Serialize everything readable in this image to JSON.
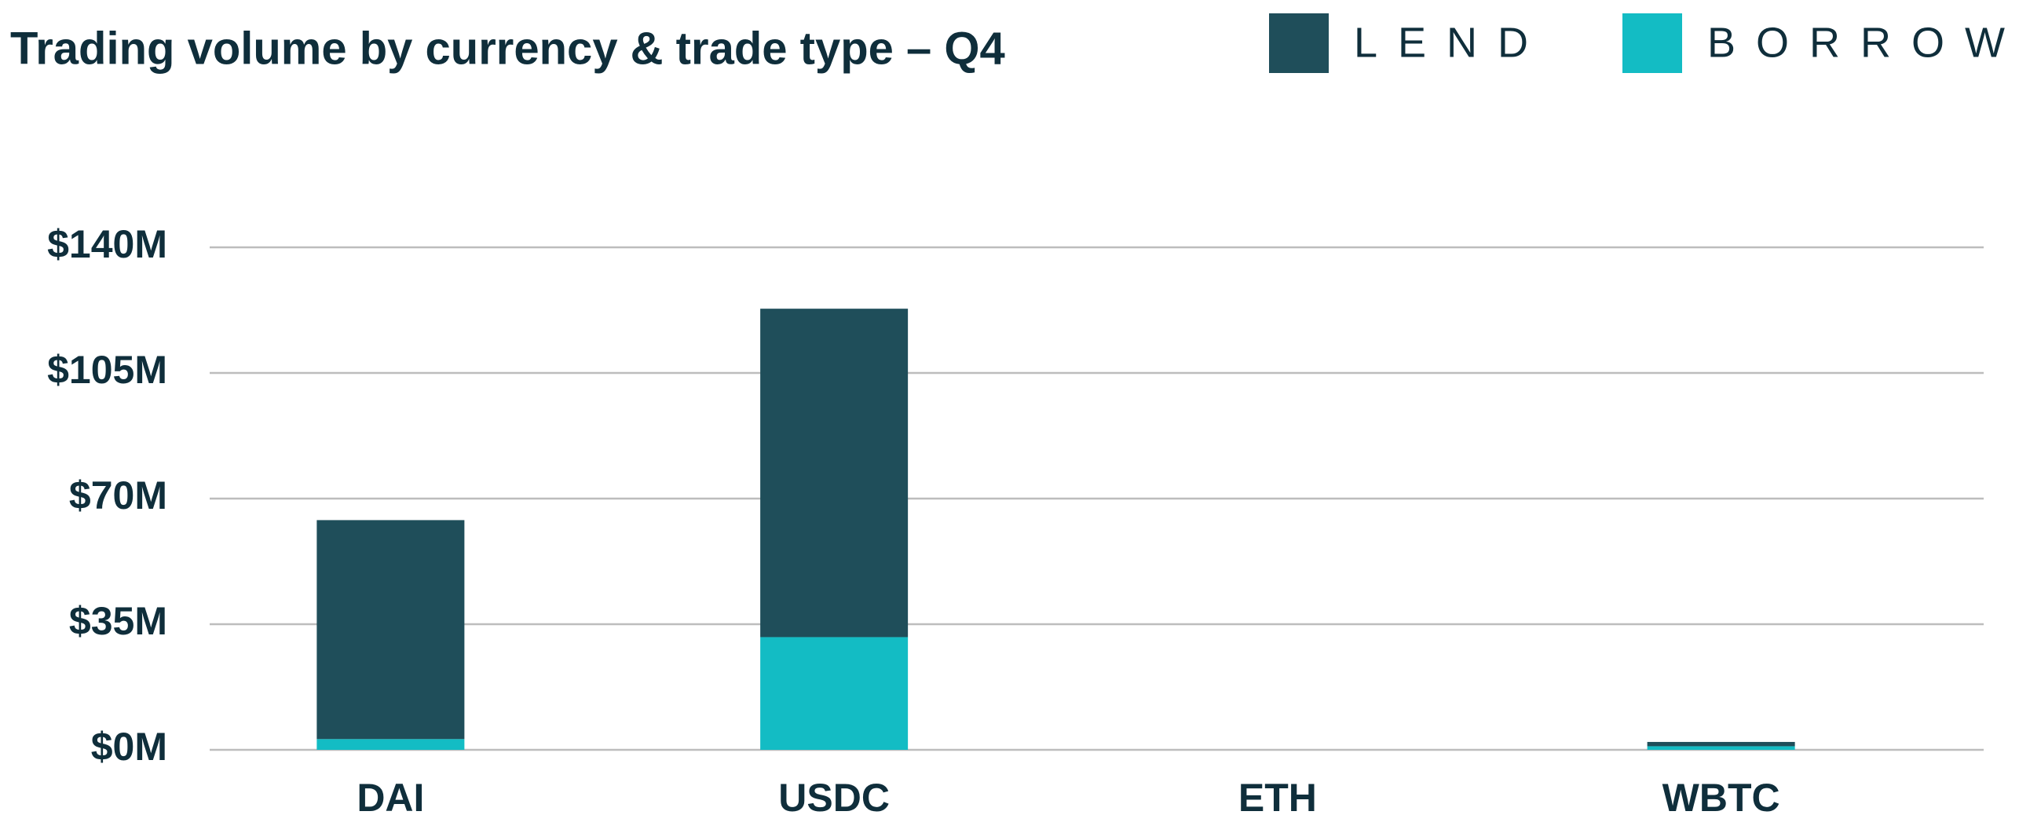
{
  "chart_data": {
    "type": "stacked_bar",
    "title": "Trading volume by currency & trade type – Q4",
    "categories": [
      "DAI",
      "USDC",
      "ETH",
      "WBTC"
    ],
    "series": [
      {
        "name": "LEND",
        "color": "#1f4e5a",
        "values": [
          61,
          91.5,
          0,
          1.2
        ]
      },
      {
        "name": "BORROW",
        "color": "#13bcc4",
        "values": [
          3,
          31.4,
          0,
          1
        ]
      }
    ],
    "ylim": [
      0,
      140
    ],
    "yticks": [
      {
        "value": 0,
        "label": "$0M"
      },
      {
        "value": 35,
        "label": "$35M"
      },
      {
        "value": 70,
        "label": "$70M"
      },
      {
        "value": 105,
        "label": "$105M"
      },
      {
        "value": 140,
        "label": "$140M"
      }
    ],
    "grid": true,
    "legend": "top-right"
  }
}
